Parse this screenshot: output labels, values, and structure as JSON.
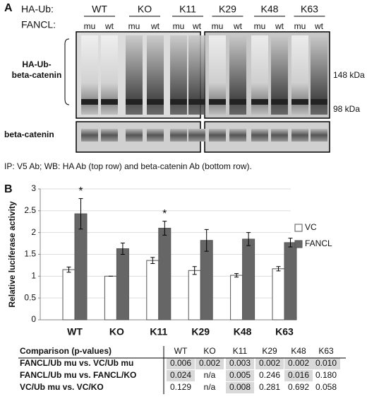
{
  "panel_a": {
    "label": "A",
    "ha_ub_label": "HA-Ub:",
    "groups": [
      "WT",
      "KO",
      "K11",
      "K29",
      "K48",
      "K63"
    ],
    "fancl_label": "FANCL:",
    "lanes": [
      "mu",
      "wt",
      "mu",
      "wt",
      "mu",
      "wt",
      "mu",
      "wt",
      "mu",
      "wt",
      "mu",
      "wt"
    ],
    "top_blot_label": [
      "HA-Ub-",
      "beta-catenin"
    ],
    "markers": [
      "148 kDa",
      "98 kDa"
    ],
    "bottom_blot_label": "beta-catenin",
    "caption": "IP: V5 Ab; WB: HA Ab (top row) and beta-catenin Ab (bottom row)."
  },
  "chart_data": {
    "type": "bar",
    "panel_label": "B",
    "y_label": "Relative luciferase activity",
    "categories": [
      "WT",
      "KO",
      "K11",
      "K29",
      "K48",
      "K63"
    ],
    "series": [
      {
        "name": "VC",
        "color": "#ffffff",
        "values": [
          1.15,
          1.0,
          1.36,
          1.13,
          1.02,
          1.17
        ],
        "errors": [
          0.06,
          0,
          0.07,
          0.09,
          0.04,
          0.05
        ]
      },
      {
        "name": "FANCL",
        "color": "#666666",
        "values": [
          2.43,
          1.63,
          2.1,
          1.82,
          1.85,
          1.77
        ],
        "errors": [
          0.35,
          0.13,
          0.16,
          0.25,
          0.15,
          0.1
        ]
      }
    ],
    "significance": [
      "*",
      null,
      "*",
      null,
      null,
      null
    ],
    "ylim": [
      0,
      3
    ],
    "yticks": [
      0,
      0.5,
      1,
      1.5,
      2,
      2.5,
      3
    ],
    "grid": true,
    "legend": "right"
  },
  "table": {
    "header": [
      "Comparison (p-values)",
      "WT",
      "KO",
      "K11",
      "K29",
      "K48",
      "K63"
    ],
    "rows": [
      [
        "FANCL/Ub mu vs. VC/Ub mu",
        "0.006",
        "0.002",
        "0.003",
        "0.002",
        "0.002",
        "0.010"
      ],
      [
        "FANCL/Ub mu vs. FANCL/KO",
        "0.024",
        "n/a",
        "0.005",
        "0.246",
        "0.016",
        "0.180"
      ],
      [
        "VC/Ub mu vs. VC/KO",
        "0.129",
        "n/a",
        "0.008",
        "0.281",
        "0.692",
        "0.058"
      ]
    ],
    "highlight_color": "#d9d9d9",
    "highlighted": [
      [
        true,
        true,
        true,
        true,
        true,
        true
      ],
      [
        true,
        false,
        true,
        false,
        true,
        false
      ],
      [
        false,
        false,
        true,
        false,
        false,
        false
      ]
    ]
  }
}
